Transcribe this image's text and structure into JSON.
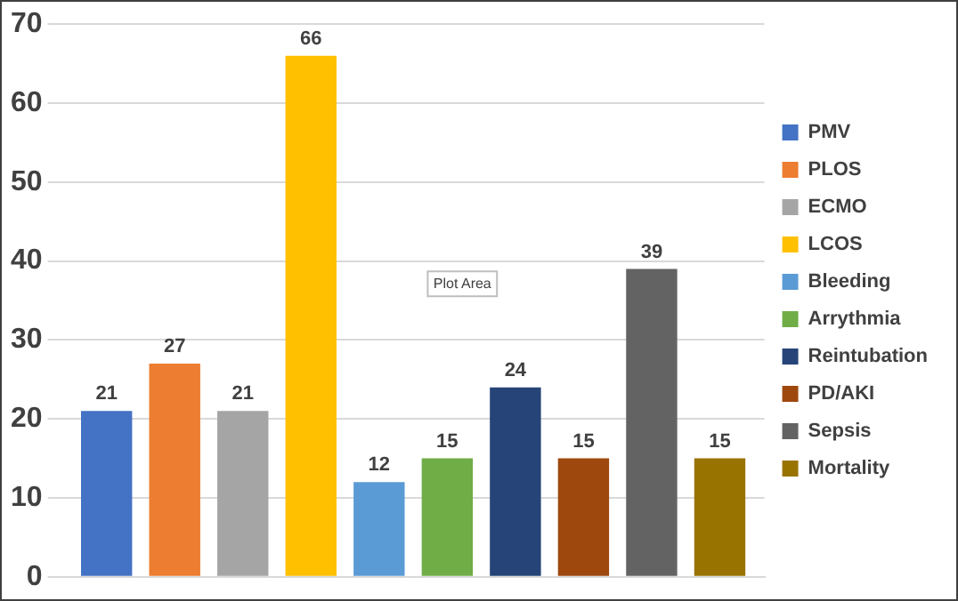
{
  "chart_data": {
    "type": "bar",
    "categories": [
      null
    ],
    "series": [
      {
        "name": "PMV",
        "color": "#4472c4",
        "values": [
          21
        ]
      },
      {
        "name": "PLOS",
        "color": "#ed7d31",
        "values": [
          27
        ]
      },
      {
        "name": "ECMO",
        "color": "#a5a5a5",
        "values": [
          21
        ]
      },
      {
        "name": "LCOS",
        "color": "#ffc000",
        "values": [
          66
        ]
      },
      {
        "name": "Bleeding",
        "color": "#5b9bd5",
        "values": [
          12
        ]
      },
      {
        "name": "Arrythmia",
        "color": "#70ad47",
        "values": [
          15
        ]
      },
      {
        "name": "Reintubation",
        "color": "#264478",
        "values": [
          24
        ]
      },
      {
        "name": "PD/AKI",
        "color": "#9e480e",
        "values": [
          15
        ]
      },
      {
        "name": "Sepsis",
        "color": "#636363",
        "values": [
          39
        ]
      },
      {
        "name": "Mortality",
        "color": "#997300",
        "values": [
          15
        ]
      }
    ],
    "ylim": [
      0,
      70
    ],
    "yticks": [
      0,
      10,
      20,
      30,
      40,
      50,
      60,
      70
    ],
    "grid": "y",
    "legend": "right",
    "tick_labels": "y",
    "data_labels": true,
    "annotations": [
      "Plot Area"
    ]
  }
}
